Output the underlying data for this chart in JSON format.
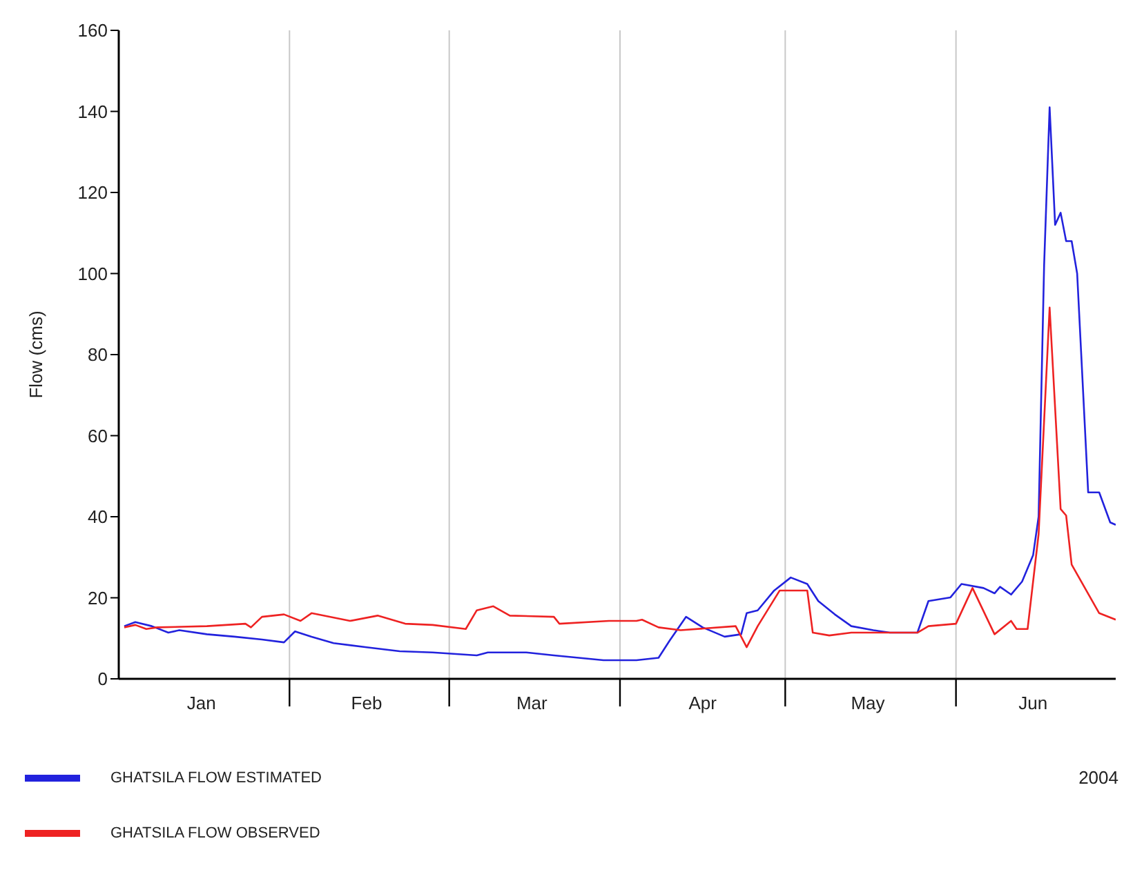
{
  "chart_data": {
    "type": "line",
    "ylabel": "Flow (cms)",
    "annotations": [
      "2004"
    ],
    "xlim": [
      "2004-01-01",
      "2004-06-30"
    ],
    "xticks": [
      {
        "value": "2004-01-16",
        "label": "Jan"
      },
      {
        "value": "2004-02-01",
        "label": null
      },
      {
        "value": "2004-02-15",
        "label": "Feb"
      },
      {
        "value": "2004-03-01",
        "label": null
      },
      {
        "value": "2004-03-16",
        "label": "Mar"
      },
      {
        "value": "2004-04-01",
        "label": null
      },
      {
        "value": "2004-04-16",
        "label": "Apr"
      },
      {
        "value": "2004-05-01",
        "label": null
      },
      {
        "value": "2004-05-16",
        "label": "May"
      },
      {
        "value": "2004-06-01",
        "label": null
      },
      {
        "value": "2004-06-15",
        "label": "Jun"
      }
    ],
    "ylim": [
      0,
      160
    ],
    "yticks": [
      0,
      20,
      40,
      60,
      80,
      100,
      120,
      140,
      160
    ],
    "grid": true,
    "legend": "bottom left",
    "marker": "none",
    "line_style": "solid",
    "series": [
      {
        "name": "GHATSILA FLOW ESTIMATED",
        "color": "#2222dd",
        "x": [
          "2004-01-02",
          "2004-01-04",
          "2004-01-07",
          "2004-01-10",
          "2004-01-12",
          "2004-01-17",
          "2004-01-22",
          "2004-01-27",
          "2004-01-31",
          "2004-02-02",
          "2004-02-05",
          "2004-02-09",
          "2004-02-15",
          "2004-02-21",
          "2004-02-27",
          "2004-03-06",
          "2004-03-08",
          "2004-03-15",
          "2004-03-20",
          "2004-03-29",
          "2004-04-04",
          "2004-04-08",
          "2004-04-10",
          "2004-04-13",
          "2004-04-16",
          "2004-04-20",
          "2004-04-23",
          "2004-04-24",
          "2004-04-26",
          "2004-04-29",
          "2004-05-02",
          "2004-05-05",
          "2004-05-07",
          "2004-05-10",
          "2004-05-13",
          "2004-05-17",
          "2004-05-20",
          "2004-05-25",
          "2004-05-27",
          "2004-05-31",
          "2004-06-02",
          "2004-06-06",
          "2004-06-08",
          "2004-06-09",
          "2004-06-11",
          "2004-06-13",
          "2004-06-15",
          "2004-06-16",
          "2004-06-17",
          "2004-06-18",
          "2004-06-19",
          "2004-06-20",
          "2004-06-21",
          "2004-06-22",
          "2004-06-23",
          "2004-06-25",
          "2004-06-27",
          "2004-06-29",
          "2004-06-30"
        ],
        "values": [
          13,
          14,
          13,
          11.4,
          12,
          11,
          10.4,
          9.7,
          9,
          11.7,
          10.4,
          8.8,
          7.8,
          6.8,
          6.5,
          5.8,
          6.5,
          6.5,
          5.8,
          4.6,
          4.6,
          5.2,
          9.4,
          15.3,
          12.7,
          10.4,
          11,
          16.2,
          16.9,
          21.8,
          25,
          23.4,
          19.2,
          15.9,
          13,
          12,
          11.4,
          11.4,
          19.2,
          20.1,
          23.4,
          22.4,
          21.1,
          22.7,
          20.8,
          24,
          30.5,
          40,
          102,
          141,
          112,
          115,
          108,
          108,
          100,
          46,
          46,
          38.6,
          38
        ]
      },
      {
        "name": "GHATSILA FLOW OBSERVED",
        "color": "#ee2222",
        "x": [
          "2004-01-02",
          "2004-01-04",
          "2004-01-06",
          "2004-01-08",
          "2004-01-17",
          "2004-01-24",
          "2004-01-25",
          "2004-01-27",
          "2004-01-31",
          "2004-02-03",
          "2004-02-05",
          "2004-02-12",
          "2004-02-17",
          "2004-02-22",
          "2004-02-27",
          "2004-03-04",
          "2004-03-06",
          "2004-03-09",
          "2004-03-12",
          "2004-03-20",
          "2004-03-21",
          "2004-03-30",
          "2004-04-04",
          "2004-04-05",
          "2004-04-08",
          "2004-04-12",
          "2004-04-22",
          "2004-04-24",
          "2004-04-26",
          "2004-04-30",
          "2004-05-05",
          "2004-05-06",
          "2004-05-09",
          "2004-05-13",
          "2004-05-25",
          "2004-05-27",
          "2004-06-01",
          "2004-06-04",
          "2004-06-08",
          "2004-06-11",
          "2004-06-12",
          "2004-06-14",
          "2004-06-16",
          "2004-06-18",
          "2004-06-20",
          "2004-06-21",
          "2004-06-22",
          "2004-06-27",
          "2004-06-30"
        ],
        "values": [
          12.7,
          13.3,
          12.3,
          12.7,
          13,
          13.6,
          12.7,
          15.3,
          15.9,
          14.3,
          16.2,
          14.3,
          15.6,
          13.6,
          13.3,
          12.3,
          16.9,
          17.9,
          15.6,
          15.3,
          13.6,
          14.3,
          14.3,
          14.6,
          12.7,
          12,
          13,
          7.8,
          13,
          21.8,
          21.8,
          11.4,
          10.7,
          11.4,
          11.4,
          13,
          13.6,
          22.4,
          11,
          14.3,
          12.3,
          12.3,
          35.7,
          91.6,
          41.9,
          40.3,
          28.2,
          16.2,
          14.6
        ]
      }
    ]
  }
}
